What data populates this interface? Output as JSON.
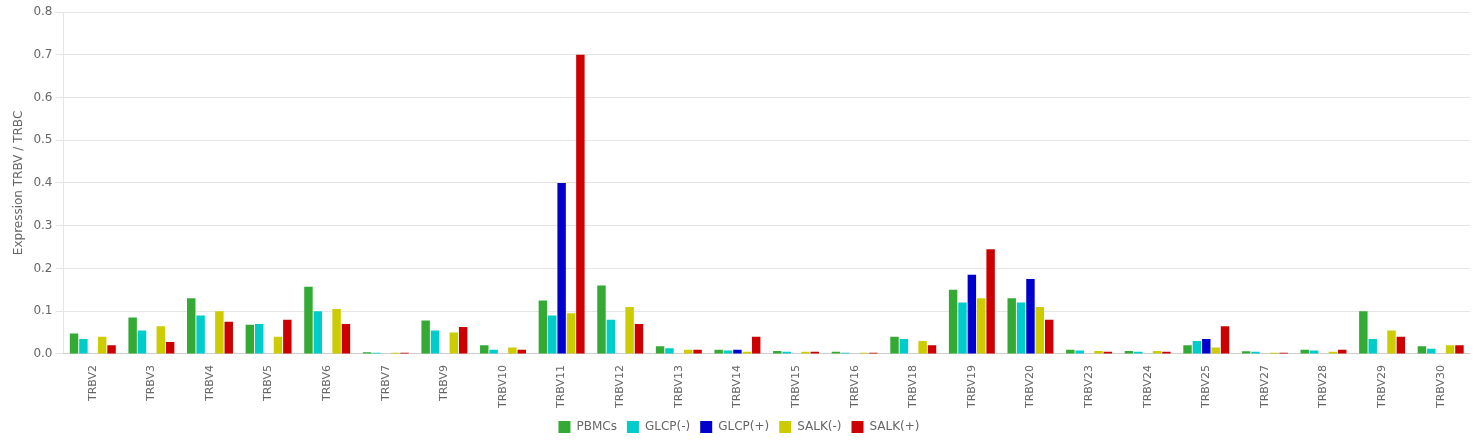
{
  "chart_data": {
    "type": "bar",
    "categories": [
      "TRBV2",
      "TRBV3",
      "TRBV4",
      "TRBV5",
      "TRBV6",
      "TRBV7",
      "TRBV9",
      "TRBV10",
      "TRBV11",
      "TRBV12",
      "TRBV13",
      "TRBV14",
      "TRBV15",
      "TRBV16",
      "TRBV18",
      "TRBV19",
      "TRBV20",
      "TRBV23",
      "TRBV24",
      "TRBV25",
      "TRBV27",
      "TRBV28",
      "TRBV29",
      "TRBV30"
    ],
    "series": [
      {
        "name": "PBMCs",
        "color": "#33aa33",
        "values": [
          0.048,
          0.085,
          0.13,
          0.068,
          0.157,
          0.004,
          0.078,
          0.02,
          0.125,
          0.16,
          0.018,
          0.01,
          0.007,
          0.005,
          0.04,
          0.15,
          0.13,
          0.01,
          0.007,
          0.02,
          0.006,
          0.01,
          0.1,
          0.018
        ]
      },
      {
        "name": "GLCP(-)",
        "color": "#00cccc",
        "values": [
          0.035,
          0.055,
          0.09,
          0.07,
          0.1,
          0.003,
          0.055,
          0.01,
          0.09,
          0.08,
          0.013,
          0.008,
          0.005,
          0.003,
          0.035,
          0.12,
          0.12,
          0.008,
          0.005,
          0.03,
          0.005,
          0.008,
          0.035,
          0.012
        ]
      },
      {
        "name": "GLCP(+)",
        "color": "#0000cc",
        "values": [
          0.0,
          0.0,
          0.0,
          0.0,
          0.0,
          0.0,
          0.0,
          0.0,
          0.4,
          0.0,
          0.0,
          0.01,
          0.0,
          0.0,
          0.0,
          0.185,
          0.175,
          0.0,
          0.0,
          0.035,
          0.0,
          0.0,
          0.0,
          0.0
        ]
      },
      {
        "name": "SALK(-)",
        "color": "#cccc00",
        "values": [
          0.04,
          0.065,
          0.1,
          0.04,
          0.105,
          0.003,
          0.05,
          0.015,
          0.095,
          0.11,
          0.01,
          0.005,
          0.005,
          0.003,
          0.03,
          0.13,
          0.11,
          0.007,
          0.007,
          0.015,
          0.003,
          0.005,
          0.055,
          0.02
        ]
      },
      {
        "name": "SALK(+)",
        "color": "#cc0000",
        "values": [
          0.02,
          0.028,
          0.075,
          0.08,
          0.07,
          0.003,
          0.063,
          0.01,
          0.7,
          0.07,
          0.01,
          0.04,
          0.005,
          0.003,
          0.02,
          0.245,
          0.08,
          0.005,
          0.005,
          0.065,
          0.003,
          0.01,
          0.04,
          0.02
        ]
      }
    ],
    "ylabel": "Expression TRBV / TRBC",
    "ylim": [
      0,
      0.8
    ],
    "yticks": [
      {
        "value": 0,
        "label": "0.0"
      },
      0.1,
      0.2,
      0.3,
      0.4,
      0.5,
      0.6,
      0.7,
      0.8
    ],
    "grid": true,
    "legend": "bottom"
  }
}
